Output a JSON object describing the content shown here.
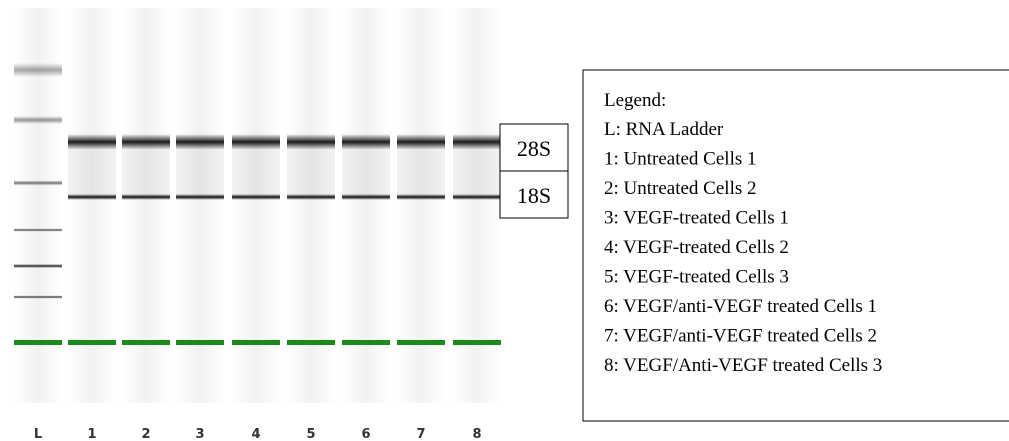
{
  "lanes": [
    "L",
    "1",
    "2",
    "3",
    "4",
    "5",
    "6",
    "7",
    "8"
  ],
  "markers": {
    "upper": "28S",
    "lower": "18S"
  },
  "legend": {
    "title": "Legend:",
    "items": [
      "L: RNA Ladder",
      "1: Untreated Cells 1",
      "2: Untreated Cells 2",
      "3: VEGF-treated Cells 1",
      "4: VEGF-treated Cells 2",
      "5: VEGF-treated Cells 3",
      "6: VEGF/anti-VEGF treated Cells 1",
      "7: VEGF/anti-VEGF treated Cells 2",
      "8: VEGF/Anti-VEGF treated Cells 3"
    ]
  }
}
